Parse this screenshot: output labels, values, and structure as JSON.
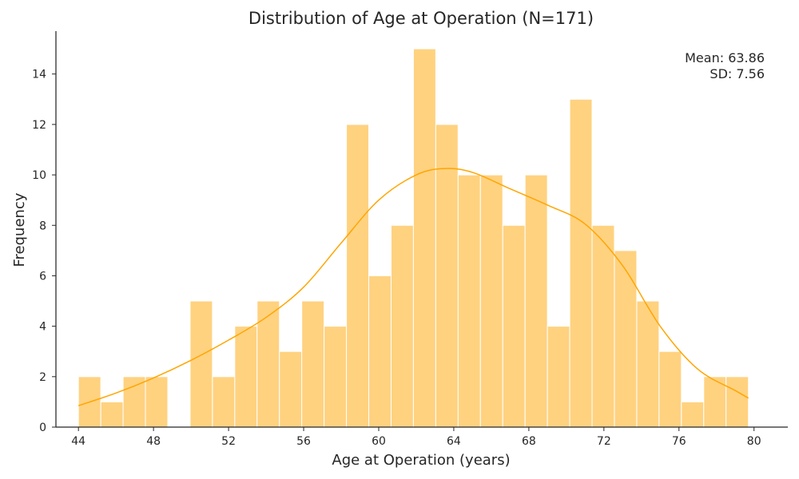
{
  "chart_data": {
    "type": "bar",
    "subtype": "histogram-with-kde",
    "title": "Distribution of Age at Operation (N=171)",
    "xlabel": "Age at Operation (years)",
    "ylabel": "Frequency",
    "xlim": [
      42.8,
      81.8
    ],
    "ylim": [
      0,
      15.7
    ],
    "xticks": [
      44,
      48,
      52,
      56,
      60,
      64,
      68,
      72,
      76,
      80
    ],
    "yticks": [
      0,
      2,
      4,
      6,
      8,
      10,
      12,
      14
    ],
    "bin_start": 44.0,
    "bin_width": 1.19,
    "counts": [
      2,
      1,
      2,
      2,
      0,
      5,
      2,
      4,
      5,
      3,
      5,
      4,
      12,
      6,
      8,
      15,
      12,
      10,
      10,
      8,
      10,
      4,
      13,
      8,
      7,
      5,
      3,
      1,
      2,
      2
    ],
    "kde": {
      "x": [
        44,
        46,
        48,
        50,
        52,
        54,
        56,
        58,
        60,
        62,
        63.5,
        65,
        67,
        69,
        71,
        73,
        75,
        77,
        79,
        79.7
      ],
      "y": [
        0.85,
        1.35,
        1.95,
        2.65,
        3.45,
        4.35,
        5.55,
        7.3,
        9.0,
        10.0,
        10.25,
        10.1,
        9.45,
        8.8,
        8.05,
        6.4,
        4.0,
        2.3,
        1.45,
        1.15
      ]
    },
    "annotation": {
      "mean": "Mean: 63.86",
      "sd": "SD: 7.56",
      "position": "top-right"
    },
    "colors": {
      "bar_fill": "#ffd280",
      "bar_edge": "#ffffff",
      "kde_line": "#ffa500",
      "axis": "#262626",
      "text": "#262626"
    },
    "grid": false
  }
}
